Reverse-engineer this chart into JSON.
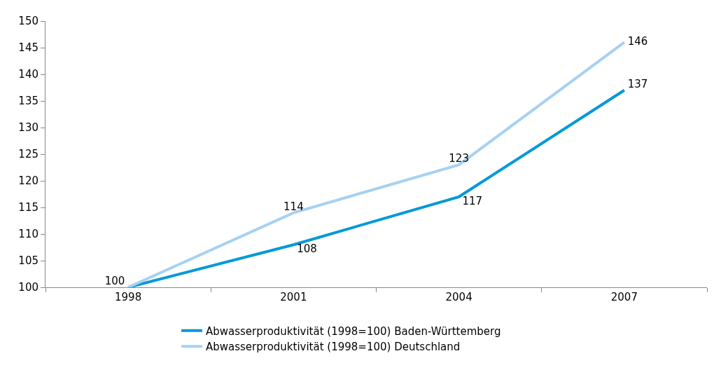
{
  "chart_data": {
    "type": "line",
    "categories": [
      "1998",
      "2001",
      "2004",
      "2007"
    ],
    "series": [
      {
        "name": "Abwasserproduktivität (1998=100) Baden-Württemberg",
        "color": "#0099d9",
        "values": [
          100,
          108,
          117,
          137
        ],
        "value_labels": [
          null,
          "108",
          "117",
          "137"
        ]
      },
      {
        "name": "Abwasserproduktivität (1998=100) Deutschland",
        "color": "#a6d1f2",
        "values": [
          100,
          114,
          123,
          146
        ],
        "value_labels": [
          "100",
          "114",
          "123",
          "146"
        ]
      }
    ],
    "ylim": [
      100,
      150
    ],
    "yticks": [
      100,
      105,
      110,
      115,
      120,
      125,
      130,
      135,
      140,
      145,
      150
    ],
    "grid": false,
    "legend": "bottom",
    "marker": "none",
    "line_style": "solid"
  }
}
